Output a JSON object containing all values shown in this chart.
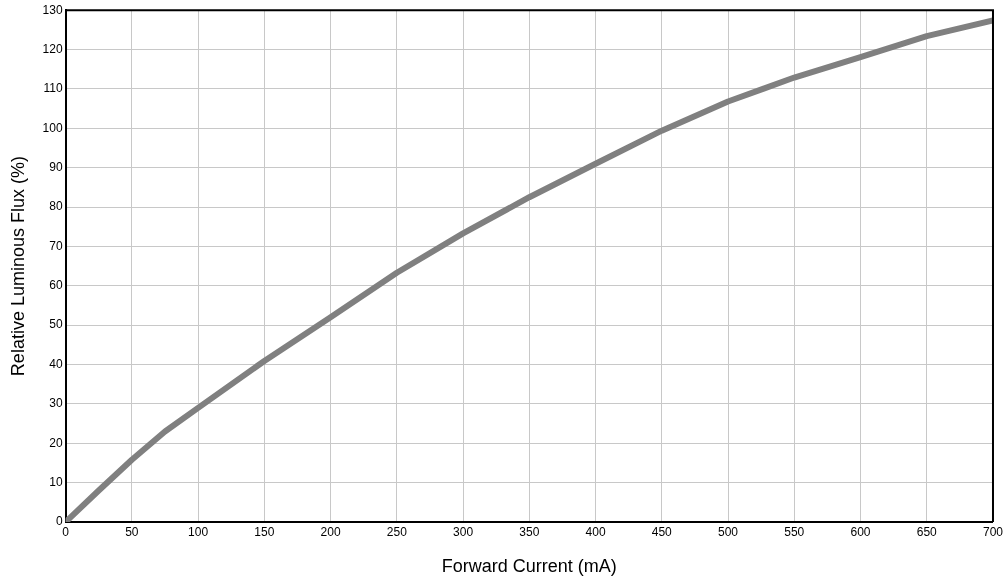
{
  "chart_data": {
    "type": "line",
    "xlabel": "Forward Current (mA)",
    "ylabel": "Relative Luminous Flux (%)",
    "x": [
      0,
      25,
      50,
      75,
      100,
      150,
      200,
      250,
      300,
      350,
      400,
      450,
      500,
      550,
      600,
      650,
      700
    ],
    "series": [
      {
        "color": "#808080",
        "values": [
          0,
          8,
          15.8,
          23,
          29,
          40.9,
          52,
          63.3,
          73.3,
          82.5,
          91,
          99.4,
          106.8,
          112.9,
          118.1,
          123.4,
          127.4
        ]
      }
    ],
    "xlim": [
      0,
      700
    ],
    "xticks": [
      0,
      50,
      100,
      150,
      200,
      250,
      300,
      350,
      400,
      450,
      500,
      550,
      600,
      650,
      700
    ],
    "ylim": [
      0,
      130
    ],
    "yticks": [
      0,
      10,
      20,
      30,
      40,
      50,
      60,
      70,
      80,
      90,
      100,
      110,
      120,
      130
    ],
    "grid": true,
    "legend": false,
    "marker": "none",
    "line_style": "solid"
  }
}
